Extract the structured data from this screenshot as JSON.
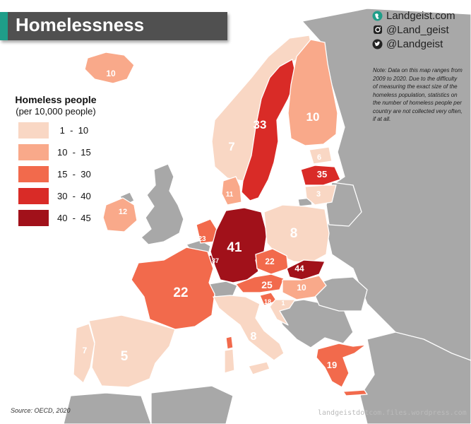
{
  "title": "Homelessness",
  "brand": {
    "site": "Landgeist.com",
    "instagram": "@Land_geist",
    "twitter": "@Landgeist"
  },
  "note": "Note: Data on this map ranges from 2009 to 2020. Due to the difficulty of measuring the exact size of the homeless population, statistics on the number of homeless people per country are not collected very often, if at all.",
  "legend": {
    "title": "Homeless people",
    "subtitle": "(per 10,000 people)",
    "items": [
      {
        "label": " 1  -  10",
        "color": "#f9d7c4"
      },
      {
        "label": "10  -  15",
        "color": "#f9a98a"
      },
      {
        "label": "15  -  30",
        "color": "#f26a4c"
      },
      {
        "label": "30  -  40",
        "color": "#d92b27"
      },
      {
        "label": "40  -  45",
        "color": "#a1111a"
      }
    ]
  },
  "source": "Source: OECD, 2020",
  "watermark": "landgeistdotcom.files.wordpress.com",
  "colors": {
    "sea": "#ffffff",
    "no_data": "#a8a8a8",
    "title_bar": "#505050",
    "accent": "#1f9e89"
  },
  "countries": [
    {
      "name": "Iceland",
      "value": "10"
    },
    {
      "name": "Norway",
      "value": "7"
    },
    {
      "name": "Sweden",
      "value": "33"
    },
    {
      "name": "Finland",
      "value": "10"
    },
    {
      "name": "Estonia",
      "value": "6"
    },
    {
      "name": "Latvia",
      "value": "35"
    },
    {
      "name": "Lithuania",
      "value": "3"
    },
    {
      "name": "Denmark",
      "value": "11"
    },
    {
      "name": "Ireland",
      "value": "12"
    },
    {
      "name": "Netherlands",
      "value": "23"
    },
    {
      "name": "Luxembourg",
      "value": "37"
    },
    {
      "name": "Germany",
      "value": "41"
    },
    {
      "name": "Poland",
      "value": "8"
    },
    {
      "name": "Czechia",
      "value": "22"
    },
    {
      "name": "Slovakia",
      "value": "44"
    },
    {
      "name": "Austria",
      "value": "25"
    },
    {
      "name": "Hungary",
      "value": "10"
    },
    {
      "name": "Slovenia",
      "value": "18"
    },
    {
      "name": "Croatia",
      "value": "1"
    },
    {
      "name": "France",
      "value": "22"
    },
    {
      "name": "Italy",
      "value": "8"
    },
    {
      "name": "Spain",
      "value": "5"
    },
    {
      "name": "Portugal",
      "value": "7"
    },
    {
      "name": "Greece",
      "value": "19"
    }
  ]
}
